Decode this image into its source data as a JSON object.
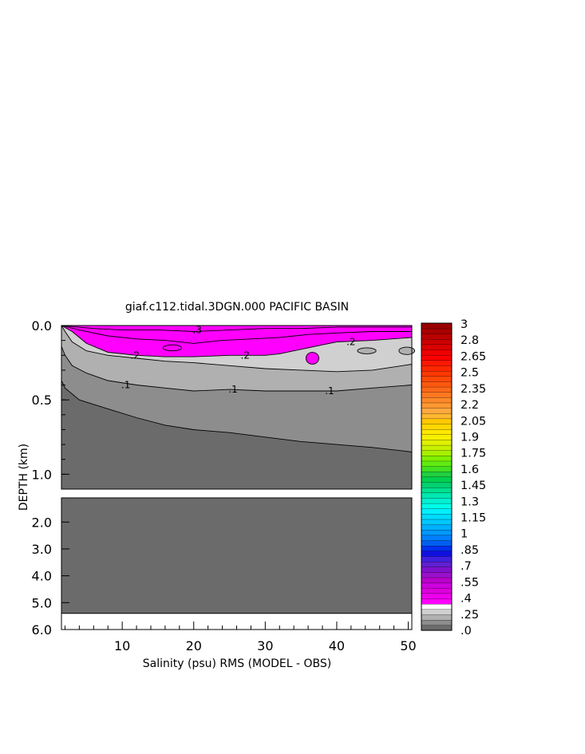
{
  "chart_data": {
    "type": "contour",
    "title": "giaf.c112.tidal.3DGN.000 PACIFIC BASIN",
    "xlabel": "Salinity (psu) RMS (MODEL - OBS)",
    "ylabel": "DEPTH (km)",
    "x_range": [
      1.5,
      50.5
    ],
    "x_ticks": [
      10,
      20,
      30,
      40,
      50
    ],
    "x_tick_labels": [
      "10",
      "20",
      "30",
      "40",
      "50"
    ],
    "upper_panel": {
      "y_range": [
        0.0,
        1.1
      ],
      "y_ticks": [
        0.0,
        0.5,
        1.0
      ],
      "y_tick_labels": [
        "0.0",
        "0.5",
        "1.0"
      ]
    },
    "lower_panel": {
      "y_range": [
        1.1,
        6.0
      ],
      "y_ticks": [
        2.0,
        3.0,
        4.0,
        5.0,
        6.0
      ],
      "y_tick_labels": [
        "2.0",
        "3.0",
        "4.0",
        "5.0",
        "6.0"
      ],
      "no_data_below_depth": 5.4
    },
    "contour_levels": [
      0.05,
      0.1,
      0.15,
      0.2,
      0.25,
      0.3
    ],
    "contours": [
      {
        "level": 0.05,
        "label": "",
        "points": [
          [
            1.5,
            0.37
          ],
          [
            2,
            0.42
          ],
          [
            4,
            0.5
          ],
          [
            8,
            0.56
          ],
          [
            12,
            0.62
          ],
          [
            16,
            0.67
          ],
          [
            20,
            0.7
          ],
          [
            25,
            0.72
          ],
          [
            30,
            0.75
          ],
          [
            35,
            0.78
          ],
          [
            40,
            0.8
          ],
          [
            45,
            0.82
          ],
          [
            50.5,
            0.85
          ]
        ]
      },
      {
        "level": 0.1,
        "label": ".1",
        "points": [
          [
            1.5,
            0.14
          ],
          [
            2,
            0.2
          ],
          [
            3,
            0.27
          ],
          [
            5,
            0.32
          ],
          [
            8,
            0.37
          ],
          [
            12,
            0.4
          ],
          [
            16,
            0.42
          ],
          [
            20,
            0.44
          ],
          [
            25,
            0.43
          ],
          [
            30,
            0.44
          ],
          [
            35,
            0.44
          ],
          [
            40,
            0.44
          ],
          [
            45,
            0.42
          ],
          [
            50.5,
            0.4
          ]
        ]
      },
      {
        "level": 0.15,
        "label": "",
        "points": [
          [
            1.5,
            0.0
          ],
          [
            2,
            0.04
          ],
          [
            3,
            0.11
          ],
          [
            5,
            0.17
          ],
          [
            8,
            0.2
          ],
          [
            12,
            0.22
          ],
          [
            16,
            0.24
          ],
          [
            20,
            0.25
          ],
          [
            25,
            0.27
          ],
          [
            30,
            0.29
          ],
          [
            35,
            0.3
          ],
          [
            40,
            0.31
          ],
          [
            45,
            0.3
          ],
          [
            50.5,
            0.26
          ]
        ]
      },
      {
        "level": 0.2,
        "label": ".2",
        "points": [
          [
            1.5,
            0.0
          ],
          [
            3,
            0.04
          ],
          [
            5,
            0.12
          ],
          [
            8,
            0.18
          ],
          [
            12,
            0.2
          ],
          [
            16,
            0.21
          ],
          [
            20,
            0.21
          ],
          [
            25,
            0.2
          ],
          [
            30,
            0.2
          ],
          [
            32,
            0.19
          ],
          [
            35,
            0.16
          ],
          [
            38,
            0.13
          ],
          [
            40,
            0.11
          ],
          [
            45,
            0.1
          ],
          [
            50.5,
            0.08
          ]
        ]
      },
      {
        "level": 0.25,
        "label": "",
        "points": [
          [
            1.5,
            0.0
          ],
          [
            4,
            0.03
          ],
          [
            8,
            0.07
          ],
          [
            12,
            0.09
          ],
          [
            16,
            0.1
          ],
          [
            20,
            0.12
          ],
          [
            24,
            0.1
          ],
          [
            28,
            0.09
          ],
          [
            32,
            0.08
          ],
          [
            36,
            0.06
          ],
          [
            40,
            0.05
          ],
          [
            45,
            0.04
          ],
          [
            50.5,
            0.04
          ]
        ]
      },
      {
        "level": 0.3,
        "label": ".3",
        "points": [
          [
            1.5,
            0.0
          ],
          [
            6,
            0.02
          ],
          [
            10,
            0.03
          ],
          [
            15,
            0.03
          ],
          [
            20,
            0.04
          ],
          [
            25,
            0.03
          ],
          [
            30,
            0.02
          ],
          [
            35,
            0.02
          ],
          [
            40,
            0.01
          ],
          [
            45,
            0.01
          ],
          [
            50.5,
            0.01
          ]
        ]
      }
    ],
    "contour_label_positions": [
      {
        "text": ".3",
        "x": 20.5,
        "y": 0.03
      },
      {
        "text": ".2",
        "x": 11.8,
        "y": 0.2
      },
      {
        "text": ".2",
        "x": 27.2,
        "y": 0.2
      },
      {
        "text": ".2",
        "x": 42.0,
        "y": 0.11
      },
      {
        "text": ".1",
        "x": 10.5,
        "y": 0.4
      },
      {
        "text": ".1",
        "x": 25.5,
        "y": 0.43
      },
      {
        "text": ".1",
        "x": 39.0,
        "y": 0.44
      }
    ],
    "closed_features": [
      {
        "kind": "magenta-blob",
        "center": [
          36.6,
          0.22
        ],
        "radius": [
          0.9,
          0.04
        ]
      },
      {
        "kind": "contour-loop",
        "center": [
          17.0,
          0.15
        ],
        "radius": [
          1.3,
          0.02
        ]
      },
      {
        "kind": "grey-island",
        "center": [
          44.2,
          0.17
        ],
        "radius": [
          1.3,
          0.02
        ]
      },
      {
        "kind": "grey-island",
        "center": [
          49.8,
          0.17
        ],
        "radius": [
          1.1,
          0.025
        ]
      }
    ],
    "colorbar": {
      "labels": [
        "3",
        "2.8",
        "2.65",
        "2.5",
        "2.35",
        "2.2",
        "2.05",
        "1.9",
        "1.75",
        "1.6",
        "1.45",
        "1.3",
        "1.15",
        "1",
        ".85",
        ".7",
        ".55",
        ".4",
        ".25",
        ".0"
      ],
      "colors_bottom_to_top": [
        "#6b6b6b",
        "#8d8d8d",
        "#b0b0b0",
        "#d0d0d0",
        "#ffffff",
        "#ff00ff",
        "#ee00ee",
        "#dd00dd",
        "#cc00dd",
        "#bb00cc",
        "#9a10cc",
        "#8010cc",
        "#6020d0",
        "#4020e0",
        "#1010e0",
        "#0030f0",
        "#0060f0",
        "#0080ff",
        "#0098ff",
        "#00b0ff",
        "#00c8ff",
        "#00dcff",
        "#00f0ff",
        "#00ffe8",
        "#00f0d0",
        "#00e8b0",
        "#00e090",
        "#00d070",
        "#00d050",
        "#20d040",
        "#40e020",
        "#60ec10",
        "#80f000",
        "#a8f000",
        "#c8f000",
        "#e0f000",
        "#f8f000",
        "#ffe800",
        "#ffd800",
        "#ffc800",
        "#ffb830",
        "#ffa840",
        "#ff9830",
        "#ff8828",
        "#ff7820",
        "#ff6818",
        "#ff5810",
        "#ff4808",
        "#ff3800",
        "#ff2800",
        "#ff1800",
        "#ff0000",
        "#ee0000",
        "#dd0000",
        "#cc0000",
        "#bb0000",
        "#aa0000",
        "#990000"
      ]
    },
    "fill_colors": {
      "lt_0.05": "#6b6b6b",
      "0.05_0.1": "#8d8d8d",
      "0.1_0.15": "#b0b0b0",
      "0.15_0.2": "#d0d0d0",
      "0.2_0.25": "#ff00ff",
      "0.25_0.3": "#ff00ff",
      "gt_0.3": "#ff00ff"
    }
  }
}
